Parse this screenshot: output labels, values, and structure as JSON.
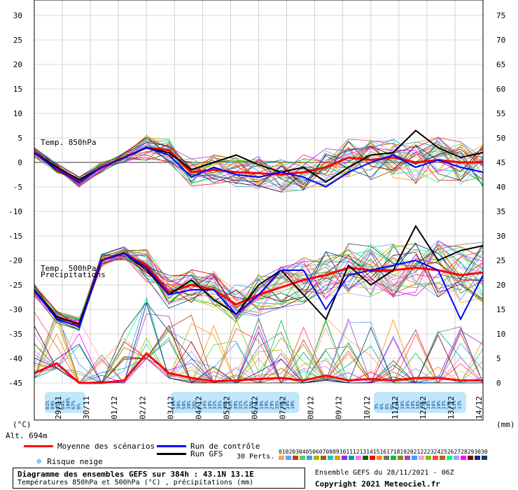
{
  "chart_data": {
    "type": "line",
    "title": "Diagramme des ensembles GEFS sur 384h : 43.1N 13.1E",
    "subtitle": "Températures 850hPa et 500hPa (°C) , précipitations (mm)",
    "x_ticks": [
      "29/11",
      "30/11",
      "01/12",
      "02/12",
      "03/12",
      "04/12",
      "05/12",
      "06/12",
      "07/12",
      "08/12",
      "09/12",
      "10/12",
      "11/12",
      "12/12",
      "13/12",
      "14/12"
    ],
    "y_left": {
      "label": "(°C)",
      "ticks": [
        30,
        25,
        20,
        15,
        10,
        5,
        0,
        -5,
        -10,
        -15,
        -20,
        -25,
        -30,
        -35,
        -40,
        -45
      ],
      "ylim": [
        -45,
        30
      ]
    },
    "y_right": {
      "label": "(mm)",
      "ticks": [
        75,
        70,
        65,
        60,
        55,
        50,
        45,
        40,
        35,
        30,
        25,
        20,
        15,
        10,
        5,
        0
      ],
      "ylim": [
        0,
        75
      ]
    },
    "annotations": [
      "Temp. 850hPa",
      "Temp. 500hPa",
      "Precipitations"
    ],
    "altitude": "Alt. 694m",
    "series": [
      {
        "name": "Moyenne des scénarios - 850hPa",
        "color": "#ff0000",
        "values": [
          2,
          -1,
          -4,
          -1,
          1,
          3,
          2.5,
          -2,
          -1.5,
          -2,
          -2.2,
          -2.5,
          -2,
          -1,
          1,
          0.5,
          1,
          0,
          0.5,
          0,
          0
        ]
      },
      {
        "name": "Run GFS - 850hPa",
        "color": "#000000",
        "values": [
          2,
          -1,
          -3.5,
          -1,
          1,
          3,
          2,
          -1.5,
          0,
          1.5,
          -0.5,
          -2,
          -1,
          -4,
          -1,
          1.5,
          2,
          6.5,
          3,
          1,
          2
        ]
      },
      {
        "name": "Run de contrôle - 850hPa",
        "color": "#0000ff",
        "values": [
          2,
          -1.5,
          -4,
          -1,
          1,
          3,
          1.5,
          -3,
          -1,
          -2.5,
          -3,
          -2,
          -3,
          -5,
          -2,
          0,
          1.5,
          -1,
          0.5,
          -1,
          -2
        ]
      },
      {
        "name": "Moyenne des scénarios - 500hPa",
        "color": "#ff0000",
        "values": [
          -26,
          -31.5,
          -33,
          -20,
          -18.5,
          -21,
          -26.5,
          -25,
          -26,
          -29,
          -27,
          -25.5,
          -24,
          -23,
          -21.5,
          -22,
          -22,
          -21.5,
          -22,
          -23,
          -22.5
        ]
      },
      {
        "name": "Run GFS - 500hPa",
        "color": "#000000",
        "values": [
          -26,
          -31.5,
          -33,
          -20,
          -18.5,
          -22,
          -27,
          -24,
          -28,
          -31,
          -25,
          -22,
          -27,
          -32,
          -21,
          -25,
          -22,
          -13,
          -20,
          -18,
          -17
        ]
      },
      {
        "name": "Run de contrôle - 500hPa",
        "color": "#0000ff",
        "values": [
          -26,
          -32,
          -33.5,
          -20,
          -18.5,
          -21.5,
          -27,
          -26,
          -26,
          -31,
          -27,
          -22,
          -22,
          -30,
          -23,
          -22,
          -21,
          -20,
          -22,
          -32,
          -23
        ]
      },
      {
        "name": "Moyenne des scénarios - précipitations",
        "color": "#ff0000",
        "values": [
          2,
          4,
          0,
          0,
          0.5,
          6,
          2,
          1,
          0.3,
          0.5,
          0.8,
          1,
          0.5,
          1.5,
          0.5,
          0.8,
          0.5,
          1,
          1,
          0.5,
          0.5
        ]
      }
    ],
    "snow_risk_groups": [
      {
        "labels": [
          "81%",
          "84%",
          "81%",
          "84%",
          "100%",
          "67%",
          "6%"
        ]
      },
      {
        "labels": [
          "16%",
          "38%",
          "58%",
          "38%",
          "26%",
          "6%",
          "16%",
          "16%",
          "32%",
          "35%",
          "48%",
          "48%",
          "39%",
          "32%",
          "32%",
          "35%",
          "29%",
          "19%",
          "19%",
          "29%",
          "35%",
          "19%",
          "10%",
          "10%"
        ]
      },
      {
        "labels": [
          "3%",
          "6%",
          "6%",
          "6%",
          "10%",
          "16%",
          "16%",
          "10%",
          "16%",
          "19%",
          "10%",
          "16%",
          "10%",
          "13%",
          "13%",
          "13%",
          "13%"
        ]
      }
    ]
  },
  "legend": {
    "mean_label": "Moyenne des scénarios",
    "control_label": "Run de contrôle",
    "gfs_label": "Run GFS",
    "snow_label": "Risque neige",
    "perts_label": "30 Perts.",
    "member_numbers": "01020304050607080910111213141516171819202122232425262728293030",
    "member_colors": [
      "#ff9f5f",
      "#6a9aff",
      "#c23b00",
      "#64c864",
      "#3aa0e8",
      "#b6b000",
      "#966400",
      "#22c0c0",
      "#e0a000",
      "#8a2be2",
      "#00a0a0",
      "#ff6fff",
      "#006400",
      "#ff0000",
      "#ff8c00",
      "#707070",
      "#00c040",
      "#8a8a00",
      "#a040c0",
      "#40a0ff",
      "#ffa0c0",
      "#80c000",
      "#ff4040",
      "#c06000",
      "#00ff80",
      "#a0a0ff",
      "#ff00ff",
      "#800000",
      "#202080",
      "#004060"
    ]
  },
  "footer": {
    "title": "Diagramme des ensembles GEFS sur 384h : 43.1N 13.1E",
    "subtitle": "Températures 850hPa et 500hPa (°C) , précipitations (mm)",
    "run_info": "Ensemble GEFS du 28/11/2021 - 06Z",
    "copyright": "Copyright 2021 Meteociel.fr"
  }
}
